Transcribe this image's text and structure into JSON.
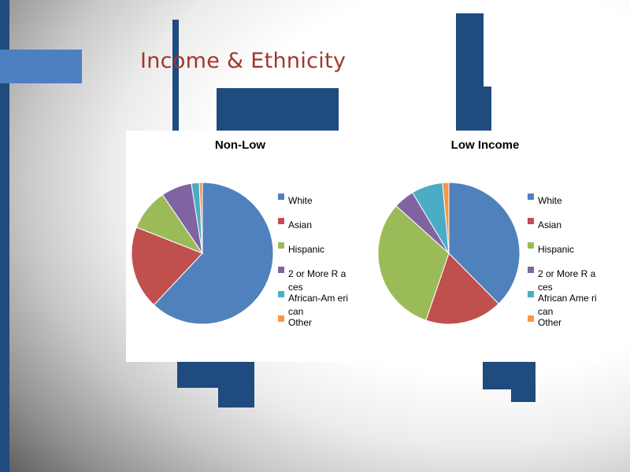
{
  "slide": {
    "title": "Income & Ethnicity"
  },
  "colors": {
    "title": "#a0362e",
    "accent_dark": "#1f4b7e",
    "accent_light": "#4d80c0"
  },
  "chart_data": [
    {
      "type": "pie",
      "title": "Non-Low",
      "categories": [
        "White",
        "Asian",
        "Hispanic",
        "2 or More Races",
        "African-American",
        "Other"
      ],
      "legend_labels": [
        "White",
        "Asian",
        "Hispanic",
        "2 or More R aces",
        "African-Am erican",
        "Other"
      ],
      "values": [
        62.0,
        19.0,
        9.5,
        7.0,
        1.8,
        0.7
      ],
      "colors": [
        "#4f81bd",
        "#c0504d",
        "#9bbb59",
        "#8064a2",
        "#4bacc6",
        "#f79646"
      ],
      "start": "12 o'clock",
      "direction": "clockwise",
      "legend_position": "right"
    },
    {
      "type": "pie",
      "title": "Low Income",
      "categories": [
        "White",
        "Asian",
        "Hispanic",
        "2 or More Races",
        "African American",
        "Other"
      ],
      "legend_labels": [
        "White",
        "Asian",
        "Hispanic",
        "2 or More R aces",
        "African Ame rican",
        "Other"
      ],
      "values": [
        39.5,
        18.5,
        33.0,
        5.0,
        7.5,
        1.5
      ],
      "colors": [
        "#4f81bd",
        "#c0504d",
        "#9bbb59",
        "#8064a2",
        "#4bacc6",
        "#f79646"
      ],
      "start": "12 o'clock",
      "direction": "clockwise",
      "legend_position": "right"
    }
  ]
}
